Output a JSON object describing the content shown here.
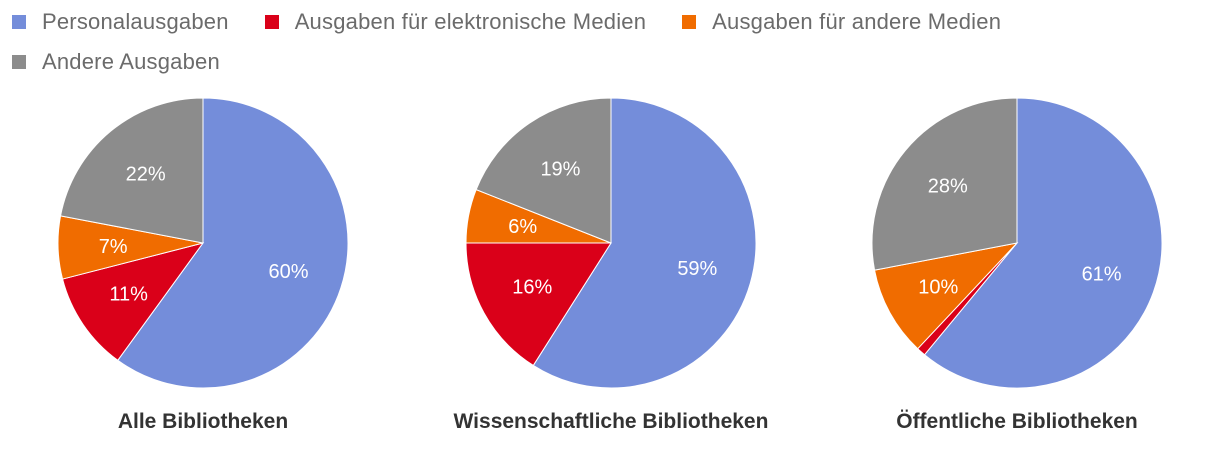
{
  "legend": [
    {
      "label": "Personalausgaben",
      "color": "#748DDA"
    },
    {
      "label": "Ausgaben für elektronische Medien",
      "color": "#DA0019"
    },
    {
      "label": "Ausgaben für andere Medien",
      "color": "#F06C00"
    },
    {
      "label": "Andere Ausgaben",
      "color": "#8C8C8C"
    }
  ],
  "chart_data": [
    {
      "type": "pie",
      "title": "Alle Bibliotheken",
      "categories": [
        "Personalausgaben",
        "Ausgaben für elektronische Medien",
        "Ausgaben für andere Medien",
        "Andere Ausgaben"
      ],
      "values": [
        60,
        11,
        7,
        22
      ],
      "labels": [
        "60%",
        "11%",
        "7%",
        "22%"
      ]
    },
    {
      "type": "pie",
      "title": "Wissenschaftliche Bibliotheken",
      "categories": [
        "Personalausgaben",
        "Ausgaben für elektronische Medien",
        "Ausgaben für andere Medien",
        "Andere Ausgaben"
      ],
      "values": [
        59,
        16,
        6,
        19
      ],
      "labels": [
        "59%",
        "16%",
        "6%",
        "19%"
      ]
    },
    {
      "type": "pie",
      "title": "Öffentliche Bibliotheken",
      "categories": [
        "Personalausgaben",
        "Ausgaben für elektronische Medien",
        "Ausgaben für andere Medien",
        "Andere Ausgaben"
      ],
      "values": [
        61,
        1,
        10,
        28
      ],
      "labels": [
        "61%",
        "",
        "10%",
        "28%"
      ]
    }
  ]
}
